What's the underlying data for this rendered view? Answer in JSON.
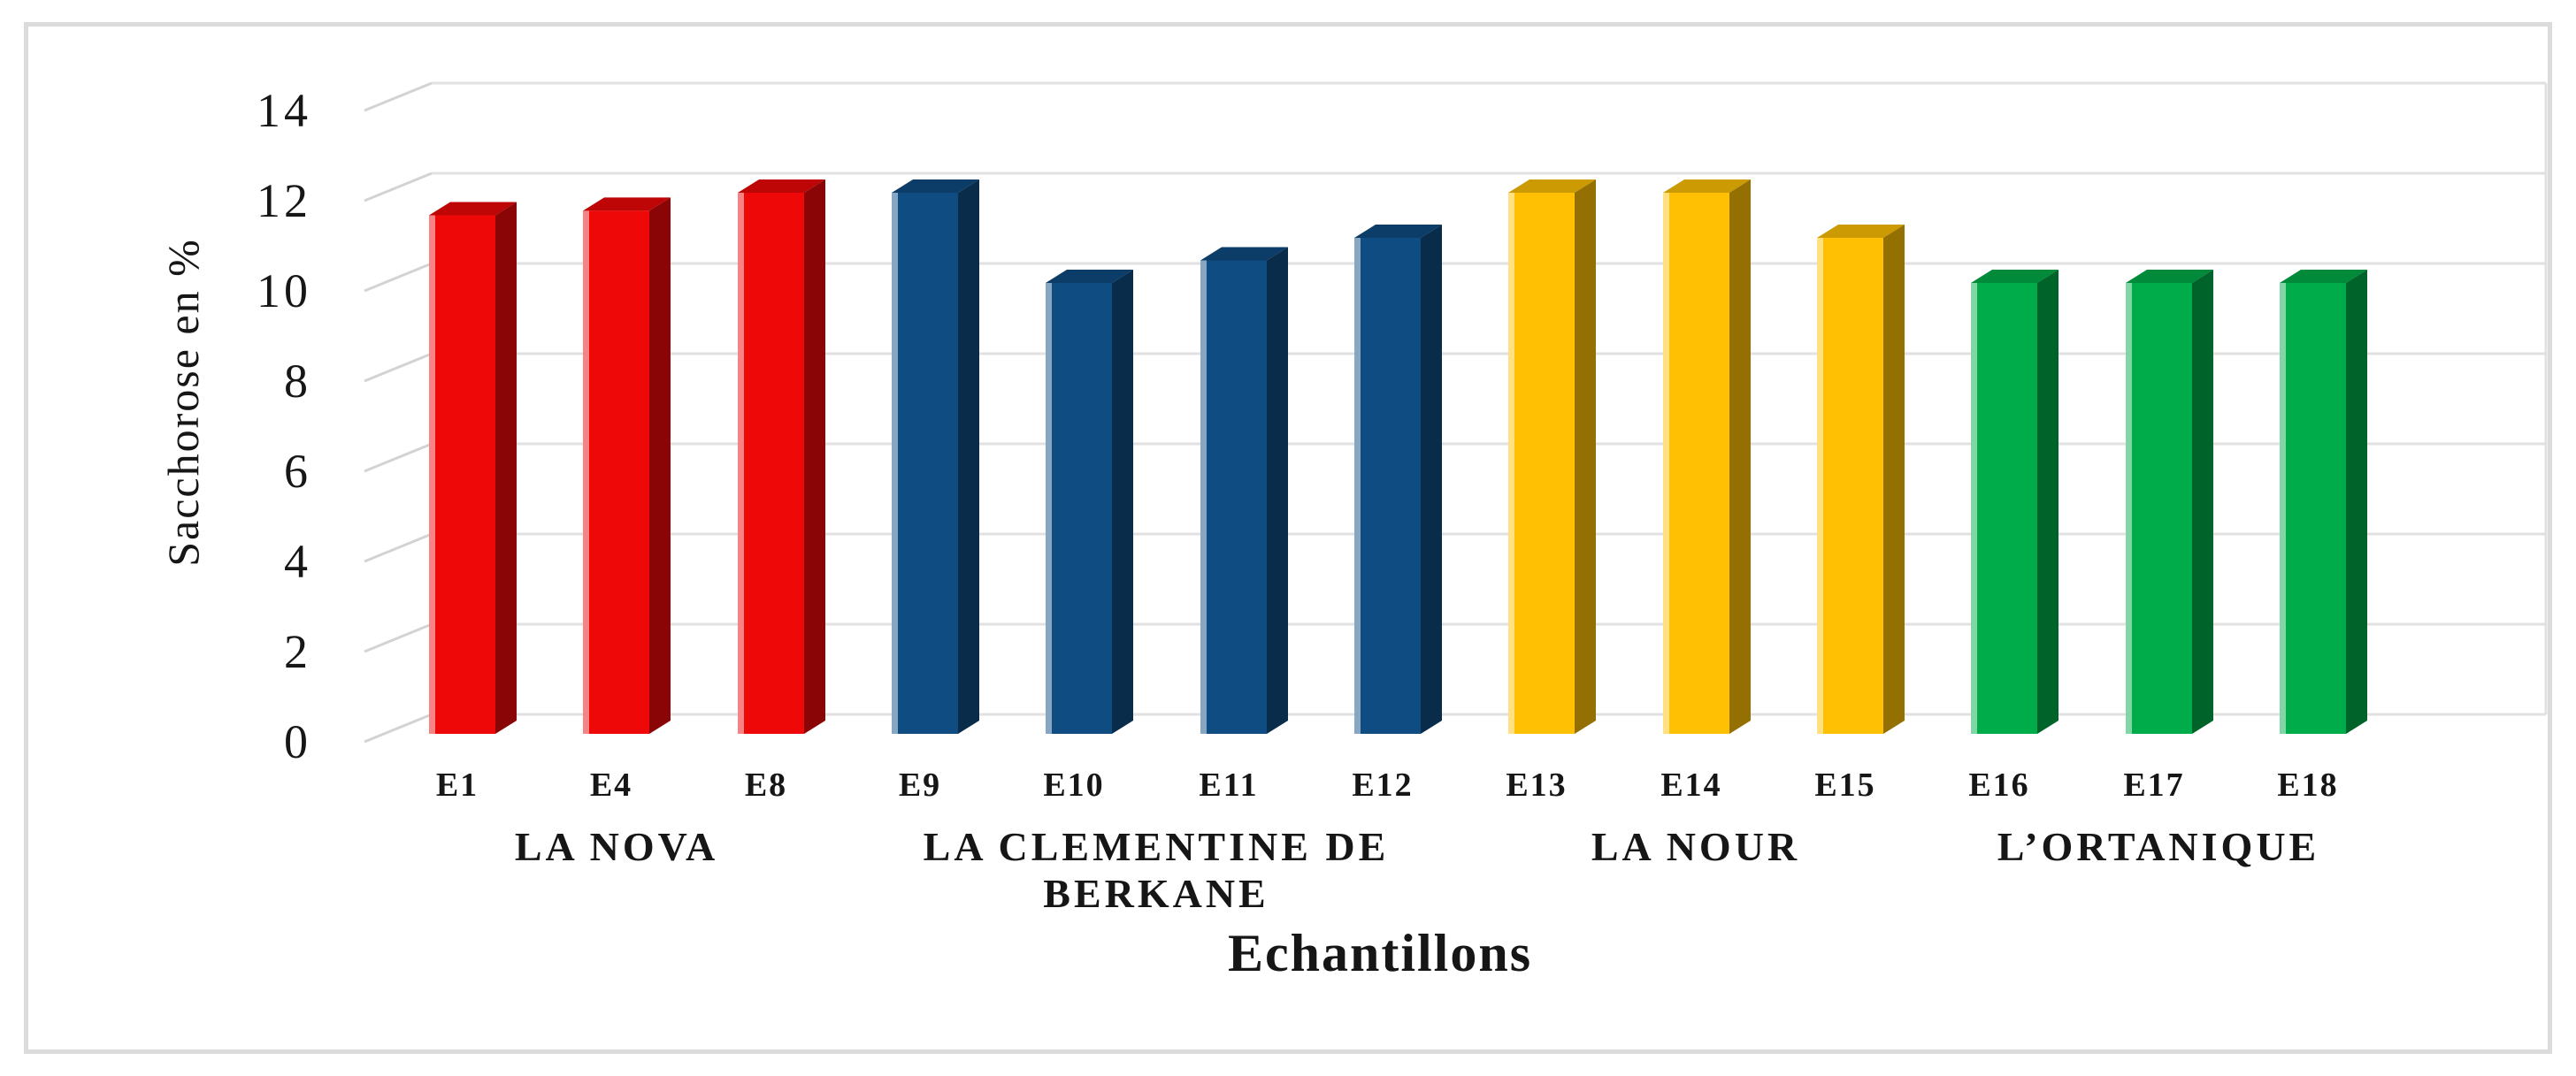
{
  "chart_data": {
    "type": "bar",
    "style": "3d-clustered-column",
    "title": "",
    "xlabel": "Echantillons",
    "ylabel": "Sacchorose en %",
    "ylim": [
      0,
      14
    ],
    "yticks": [
      0,
      2,
      4,
      6,
      8,
      10,
      12,
      14
    ],
    "grid": true,
    "legend": "none",
    "groups": [
      {
        "name": "LA NOVA",
        "lines": [
          "LA NOVA"
        ],
        "color": "#EE0808",
        "samples": [
          {
            "label": "E1",
            "value": 11.5
          },
          {
            "label": "E4",
            "value": 11.6
          },
          {
            "label": "E8",
            "value": 12
          }
        ]
      },
      {
        "name": "LA CLEMENTINE DE BERKANE",
        "lines": [
          "LA CLEMENTINE DE",
          "BERKANE"
        ],
        "color": "#0F4C82",
        "samples": [
          {
            "label": "E9",
            "value": 12
          },
          {
            "label": "E10",
            "value": 10
          },
          {
            "label": "E11",
            "value": 10.5
          },
          {
            "label": "E12",
            "value": 11
          }
        ]
      },
      {
        "name": "LA NOUR",
        "lines": [
          "LA NOUR"
        ],
        "color": "#FFC004",
        "samples": [
          {
            "label": "E13",
            "value": 12
          },
          {
            "label": "E14",
            "value": 12
          },
          {
            "label": "E15",
            "value": 11
          }
        ]
      },
      {
        "name": "L’ORTANIQUE",
        "lines": [
          "L’ORTANIQUE"
        ],
        "color": "#00AC49",
        "samples": [
          {
            "label": "E16",
            "value": 10
          },
          {
            "label": "E17",
            "value": 10
          },
          {
            "label": "E18",
            "value": 10
          }
        ]
      }
    ]
  }
}
